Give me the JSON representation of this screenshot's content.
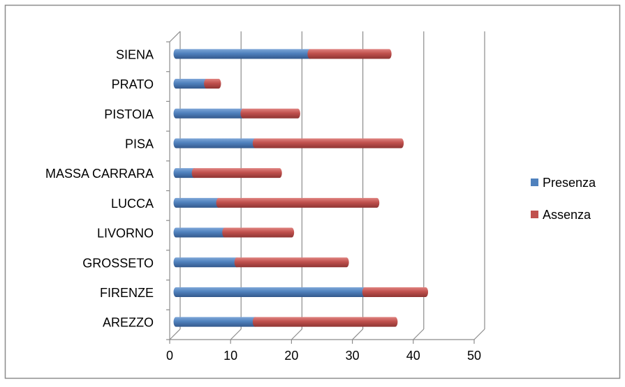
{
  "chart_data": {
    "type": "bar",
    "orientation": "horizontal",
    "stacked": true,
    "style": "3d",
    "categories": [
      "AREZZO",
      "FIRENZE",
      "GROSSETO",
      "LIVORNO",
      "LUCCA",
      "MASSA CARRARA",
      "PISA",
      "PISTOIA",
      "PRATO",
      "SIENA"
    ],
    "series": [
      {
        "name": "Presenza",
        "color": "#4f81bd",
        "values": [
          13,
          31,
          10,
          8,
          7,
          3,
          13,
          11,
          5,
          22
        ]
      },
      {
        "name": "Assenza",
        "color": "#c0504d",
        "values": [
          23,
          10,
          18,
          11,
          26,
          14,
          24,
          9,
          2,
          13
        ]
      }
    ],
    "x_ticks": [
      "0",
      "10",
      "20",
      "30",
      "40",
      "50"
    ],
    "xlim": [
      0,
      50
    ],
    "grid": true,
    "legend_position": "right",
    "title": "",
    "xlabel": "",
    "ylabel": ""
  }
}
